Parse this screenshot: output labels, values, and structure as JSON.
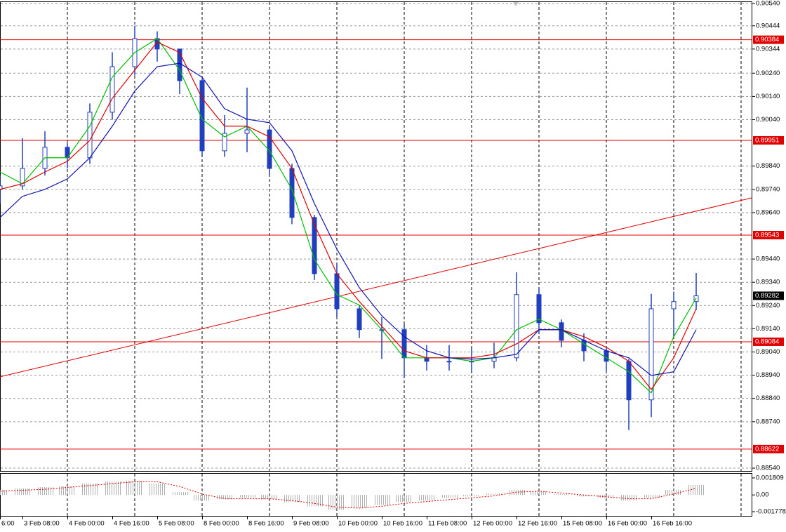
{
  "chart_data": [
    {
      "type": "candlestick",
      "x_labels": [
        "6:00",
        "3 Feb 08:00",
        "4 Feb 00:00",
        "4 Feb 16:00",
        "5 Feb 08:00",
        "8 Feb 00:00",
        "8 Feb 16:00",
        "9 Feb 08:00",
        "10 Feb 00:00",
        "10 Feb 16:00",
        "11 Feb 08:00",
        "12 Feb 00:00",
        "12 Feb 16:00",
        "15 Feb 08:00",
        "16 Feb 00:00",
        "16 Feb 16:00"
      ],
      "open": [
        0.8974,
        0.89755,
        0.8983,
        0.89921,
        0.89876,
        0.90072,
        0.90268,
        0.90389,
        0.90344,
        0.90208,
        0.89906,
        0.89981,
        0.89996,
        0.8983,
        0.89619,
        0.89377,
        0.89226,
        0.89136,
        0.89136,
        0.89015,
        0.89,
        0.89,
        0.89,
        0.89015,
        0.89287,
        0.89166,
        0.8909,
        0.89045,
        0.89,
        0.88834,
        0.89226,
        0.89257
      ],
      "high": [
        0.898,
        0.8996,
        0.8999,
        0.8994,
        0.9011,
        0.9033,
        0.90444,
        0.9042,
        0.90344,
        0.9022,
        0.9006,
        0.90178,
        0.9001,
        0.8985,
        0.8963,
        0.8942,
        0.8924,
        0.8919,
        0.8916,
        0.8907,
        0.8907,
        0.8906,
        0.8908,
        0.89383,
        0.8932,
        0.8918,
        0.8912,
        0.8906,
        0.8901,
        0.8929,
        0.893,
        0.8938
      ],
      "low": [
        0.8968,
        0.8974,
        0.898,
        0.8983,
        0.8985,
        0.9004,
        0.9023,
        0.9029,
        0.9015,
        0.8988,
        0.8988,
        0.899,
        0.898,
        0.8959,
        0.8935,
        0.8919,
        0.891,
        0.8901,
        0.8893,
        0.8896,
        0.8896,
        0.8895,
        0.8897,
        0.89,
        0.8912,
        0.8906,
        0.89,
        0.8896,
        0.88704,
        0.8876,
        0.891,
        0.8922
      ],
      "close": [
        0.89755,
        0.8983,
        0.89921,
        0.89876,
        0.90072,
        0.90268,
        0.90389,
        0.90344,
        0.90208,
        0.89906,
        0.89981,
        0.89996,
        0.8983,
        0.89619,
        0.89377,
        0.89226,
        0.89136,
        0.89136,
        0.89015,
        0.89,
        0.89,
        0.89,
        0.89015,
        0.89287,
        0.89166,
        0.8909,
        0.89045,
        0.89,
        0.88834,
        0.89226,
        0.89257,
        0.89282
      ],
      "color": "#1f3fbf",
      "moving_averages": [
        {
          "color": "#00c000",
          "values": [
            0.89815,
            0.89764,
            0.89876,
            0.89876,
            0.90012,
            0.90223,
            0.90329,
            0.90389,
            0.90253,
            0.90042,
            0.89966,
            0.90012,
            0.89906,
            0.8974,
            0.89438,
            0.89287,
            0.89242,
            0.89136,
            0.89015,
            0.89015,
            0.89015,
            0.89,
            0.89015,
            0.89136,
            0.89181,
            0.89136,
            0.89075,
            0.89015,
            0.88955,
            0.88864,
            0.89106,
            0.89272
          ]
        },
        {
          "color": "#e00000",
          "values": [
            0.8974,
            0.89764,
            0.89815,
            0.89861,
            0.89951,
            0.90132,
            0.90253,
            0.90374,
            0.90329,
            0.90132,
            0.90012,
            0.90012,
            0.89966,
            0.8983,
            0.89589,
            0.89377,
            0.89257,
            0.89151,
            0.89045,
            0.89015,
            0.89015,
            0.89015,
            0.8903,
            0.89075,
            0.89136,
            0.89136,
            0.89106,
            0.8906,
            0.89,
            0.88879,
            0.89015,
            0.89226
          ]
        },
        {
          "color": "#1010b0",
          "values": [
            0.89619,
            0.8971,
            0.8974,
            0.89785,
            0.89876,
            0.90012,
            0.90163,
            0.90268,
            0.90283,
            0.90223,
            0.90087,
            0.90042,
            0.90027,
            0.89906,
            0.89679,
            0.89483,
            0.89317,
            0.89196,
            0.89106,
            0.89045,
            0.89015,
            0.89009,
            0.89015,
            0.8903,
            0.89136,
            0.89136,
            0.8909,
            0.89045,
            0.89015,
            0.88939,
            0.88955,
            0.89136
          ]
        }
      ],
      "levels": [
        0.90384,
        0.89951,
        0.89543,
        0.89084,
        0.88622
      ],
      "level_color": "#e00000",
      "last_price": 0.89282,
      "trendline": [
        0.88933,
        0.89704
      ],
      "ylim": [
        0.88525,
        0.90549
      ],
      "yticks": [
        {
          "value": 0.9054,
          "label": "0.90540"
        },
        0.90444,
        0.90344,
        {
          "value": 0.9024,
          "label": "0.90240"
        },
        {
          "value": 0.9014,
          "label": "0.90140"
        },
        {
          "value": 0.9004,
          "label": "0.90040"
        },
        {
          "value": 0.8984,
          "label": "0.89840"
        },
        {
          "value": 0.8974,
          "label": "0.89740"
        },
        {
          "value": 0.8964,
          "label": "0.89640"
        },
        {
          "value": 0.8944,
          "label": "0.89440"
        },
        {
          "value": 0.8934,
          "label": "0.89340"
        },
        {
          "value": 0.8924,
          "label": "0.89240"
        },
        {
          "value": 0.8914,
          "label": "0.89140"
        },
        {
          "value": 0.8904,
          "label": "0.89040"
        },
        {
          "value": 0.8894,
          "label": "0.88940"
        },
        {
          "value": 0.8884,
          "label": "0.88840"
        },
        {
          "value": 0.8874,
          "label": "0.88740"
        },
        {
          "value": 0.8854,
          "label": "0.88540"
        }
      ],
      "grid": true
    },
    {
      "type": "oscillator",
      "values": [
        0.00053,
        0.00068,
        0.00083,
        0.0009,
        0.00121,
        0.00143,
        0.00151,
        0.00121,
        0.0003,
        -0.0006,
        -0.00045,
        -0.0003,
        -0.00045,
        -0.00075,
        -0.00121,
        -0.00158,
        -0.00136,
        -0.00106,
        -0.00075,
        -0.0006,
        -0.0003,
        -0.00015,
        0.00015,
        0.00053,
        0.00038,
        8e-05,
        -0.00015,
        -0.0003,
        -0.0006,
        -0.0003,
        0.00053,
        0.00106
      ],
      "signal": [
        0.0004,
        0.0005,
        0.0006,
        0.0008,
        0.001,
        0.0012,
        0.0014,
        0.0014,
        0.0009,
        0.0001,
        -0.0004,
        -0.0004,
        -0.0004,
        -0.0006,
        -0.0009,
        -0.0013,
        -0.0014,
        -0.0012,
        -0.0009,
        -0.0007,
        -0.0005,
        -0.0003,
        -0.0001,
        0.0003,
        0.0004,
        0.0002,
        0,
        -0.0002,
        -0.0004,
        -0.0004,
        0.0001,
        0.0007
      ],
      "color": "#b0b0b0",
      "signal_color": "#e00000",
      "ylim": [
        -0.00222,
        0.00225
      ],
      "yticks": [
        0.001809,
        {
          "value": 0,
          "label": "0.00"
        },
        -0.001778
      ]
    }
  ]
}
